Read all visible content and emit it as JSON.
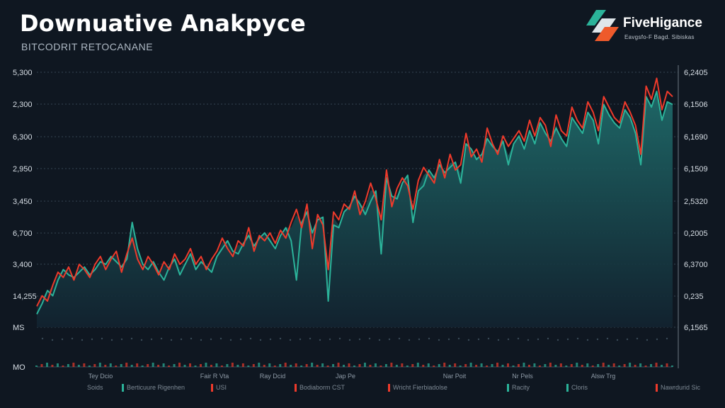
{
  "header": {
    "title": "Downuative Anakpyce",
    "subtitle": "BITCODRIT RETOCANANE"
  },
  "logo": {
    "name": "FiveHigance",
    "tagline": "Eavgsfo-F Bagd. Sibiskas"
  },
  "colors": {
    "background": "#0f1721",
    "teal": "#2bb39a",
    "red": "#ee3a2b",
    "area_top": "#1f6b6a",
    "area_bottom": "#122330",
    "grid": "#3a4a58"
  },
  "legend": [
    {
      "label": "Soids",
      "color": "#0f1721"
    },
    {
      "label": "Berticuure Rigenhen",
      "color": "#2bb39a"
    },
    {
      "label": "USI",
      "color": "#ee3a2b"
    },
    {
      "label": "Bodiaborm CST",
      "color": "#ee3a2b"
    },
    {
      "label": "Wricht Fierbiadolse",
      "color": "#ee3a2b"
    },
    {
      "label": "Racity",
      "color": "#2bb39a"
    },
    {
      "label": "Cloris",
      "color": "#2bb39a"
    },
    {
      "label": "Nawrdurid Sic",
      "color": "#ee3a2b"
    }
  ],
  "chart_data": {
    "type": "line",
    "title": "Downuative Anakpyce",
    "subtitle": "BITCODRIT RETOCANANE",
    "y_left_ticks": [
      "5,300",
      "2,300",
      "6,300",
      "2,950",
      "3,450",
      "6,700",
      "3,400",
      "14,255",
      "MS",
      "MO"
    ],
    "y_right_ticks": [
      "6,2405",
      "6,1506",
      "6,1690",
      "6,1509",
      "2,5320",
      "0,2005",
      "6,3700",
      "0,235",
      "6,1565"
    ],
    "x_tick_labels": [
      "Tey Dcio",
      "Fair R Vta",
      "Ray Dcid",
      "Jap Pe",
      "Nar Poit",
      "Nr Pels",
      "Alsw Trg"
    ],
    "ylim": [
      0,
      100
    ],
    "grid": true,
    "legend_position": "bottom",
    "x": [
      0,
      1,
      2,
      3,
      4,
      5,
      6,
      7,
      8,
      9,
      10,
      11,
      12,
      13,
      14,
      15,
      16,
      17,
      18,
      19,
      20,
      21,
      22,
      23,
      24,
      25,
      26,
      27,
      28,
      29,
      30,
      31,
      32,
      33,
      34,
      35,
      36,
      37,
      38,
      39,
      40,
      41,
      42,
      43,
      44,
      45,
      46,
      47,
      48,
      49,
      50,
      51,
      52,
      53,
      54,
      55,
      56,
      57,
      58,
      59,
      60,
      61,
      62,
      63,
      64,
      65,
      66,
      67,
      68,
      69,
      70,
      71,
      72,
      73,
      74,
      75,
      76,
      77,
      78,
      79,
      80,
      81,
      82,
      83,
      84,
      85,
      86,
      87,
      88,
      89,
      90,
      91,
      92,
      93,
      94,
      95,
      96,
      97,
      98,
      99,
      100,
      101,
      102,
      103,
      104,
      105,
      106,
      107,
      108,
      109,
      110,
      111,
      112,
      113,
      114,
      115,
      116,
      117,
      118,
      119,
      120
    ],
    "series": [
      {
        "color": "#2bb39a",
        "values": [
          5,
          9,
          14,
          12,
          18,
          22,
          20,
          19,
          21,
          23,
          20,
          22,
          25,
          24,
          27,
          25,
          23,
          26,
          40,
          30,
          24,
          22,
          25,
          21,
          18,
          23,
          26,
          20,
          24,
          28,
          22,
          25,
          23,
          21,
          27,
          30,
          33,
          29,
          28,
          32,
          35,
          31,
          34,
          36,
          33,
          30,
          35,
          38,
          33,
          18,
          40,
          44,
          36,
          41,
          42,
          10,
          39,
          38,
          44,
          46,
          50,
          47,
          43,
          48,
          52,
          28,
          57,
          50,
          49,
          55,
          58,
          40,
          52,
          54,
          60,
          57,
          62,
          59,
          61,
          63,
          55,
          70,
          68,
          64,
          66,
          72,
          69,
          67,
          71,
          62,
          70,
          73,
          68,
          75,
          70,
          78,
          74,
          71,
          76,
          72,
          69,
          80,
          77,
          74,
          82,
          79,
          70,
          85,
          81,
          78,
          76,
          83,
          80,
          74,
          62,
          88,
          84,
          90,
          79,
          86,
          85
        ]
      },
      {
        "color": "#ee3a2b",
        "values": [
          8,
          12,
          10,
          16,
          21,
          19,
          23,
          18,
          24,
          22,
          19,
          24,
          27,
          22,
          26,
          29,
          21,
          28,
          34,
          26,
          22,
          27,
          24,
          20,
          25,
          22,
          28,
          24,
          26,
          30,
          24,
          27,
          22,
          26,
          29,
          34,
          30,
          27,
          33,
          31,
          38,
          29,
          35,
          33,
          36,
          32,
          37,
          34,
          40,
          45,
          38,
          47,
          30,
          43,
          39,
          22,
          44,
          41,
          47,
          45,
          52,
          43,
          48,
          55,
          49,
          41,
          60,
          46,
          53,
          57,
          54,
          45,
          56,
          61,
          58,
          55,
          64,
          57,
          66,
          60,
          62,
          74,
          65,
          68,
          63,
          76,
          70,
          66,
          73,
          69,
          72,
          75,
          71,
          79,
          73,
          80,
          77,
          69,
          81,
          75,
          73,
          84,
          79,
          76,
          86,
          82,
          75,
          88,
          84,
          80,
          78,
          86,
          82,
          77,
          66,
          92,
          87,
          95,
          83,
          90,
          88
        ]
      }
    ]
  }
}
